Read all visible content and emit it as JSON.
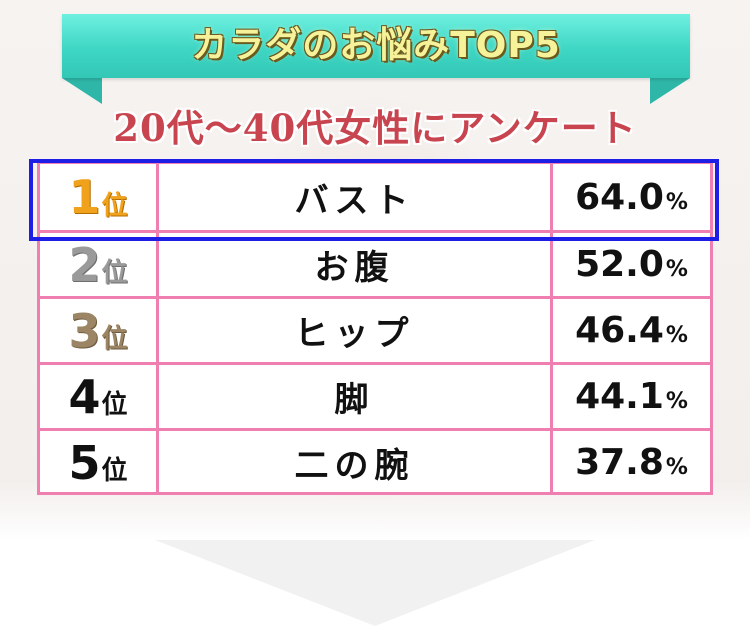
{
  "header": {
    "title": "カラダのお悩みTOP5",
    "subtitle": "20代〜40代女性にアンケート"
  },
  "ranking": {
    "rank_suffix": "位",
    "percent_sign": "%",
    "rows": [
      {
        "rank": "1",
        "item": "バスト",
        "percent": "64.0"
      },
      {
        "rank": "2",
        "item": "お腹",
        "percent": "52.0"
      },
      {
        "rank": "3",
        "item": "ヒップ",
        "percent": "46.4"
      },
      {
        "rank": "4",
        "item": "脚",
        "percent": "44.1"
      },
      {
        "rank": "5",
        "item": "二の腕",
        "percent": "37.8"
      }
    ]
  },
  "colors": {
    "ribbon": "#3ed6c4",
    "title_text": "#f6f29a",
    "subtitle_text": "#c8454f",
    "table_border": "#ee7fb0",
    "highlight_border": "#1d1de6",
    "rank1": "#f0a21c",
    "rank2": "#9a9a9a",
    "rank3": "#9b8564"
  }
}
